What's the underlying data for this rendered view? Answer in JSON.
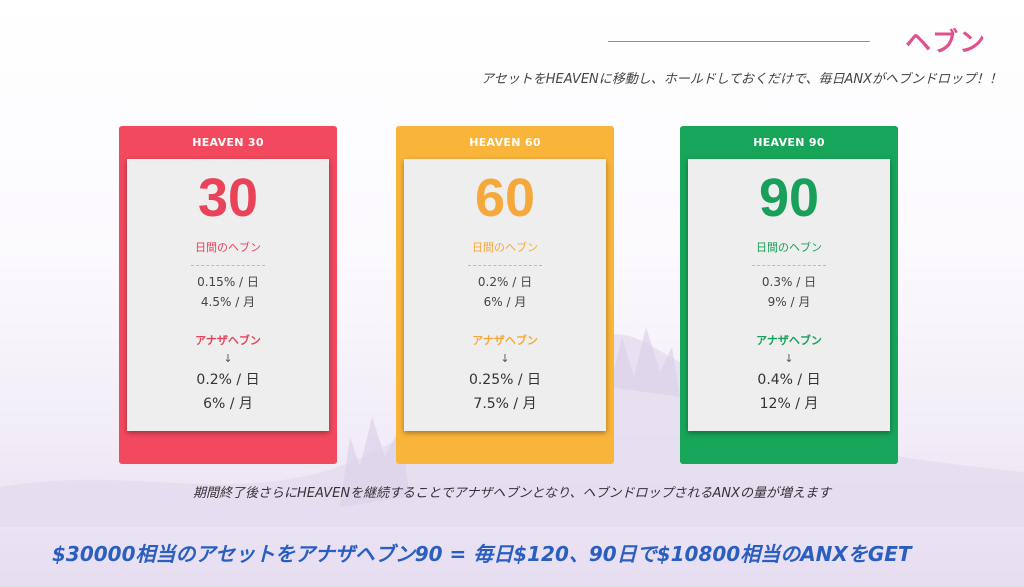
{
  "header": {
    "title": "ヘブン",
    "subtitle": "アセットをHEAVENに移動し、ホールドしておくだけで、毎日ANXがヘブンドロップ！！"
  },
  "cards": [
    {
      "title": "HEAVEN 30",
      "days": "30",
      "days_label": "日間のヘブン",
      "rate_daily": "0.15% / 日",
      "rate_monthly": "4.5% / 月",
      "another_label": "アナザヘブン",
      "arrow": "↓",
      "another_daily": "0.2% / 日",
      "another_monthly": "6% / 月"
    },
    {
      "title": "HEAVEN 60",
      "days": "60",
      "days_label": "日間のヘブン",
      "rate_daily": "0.2% / 日",
      "rate_monthly": "6% / 月",
      "another_label": "アナザヘブン",
      "arrow": "↓",
      "another_daily": "0.25% / 日",
      "another_monthly": "7.5% / 月"
    },
    {
      "title": "HEAVEN 90",
      "days": "90",
      "days_label": "日間のヘブン",
      "rate_daily": "0.3% / 日",
      "rate_monthly": "9% / 月",
      "another_label": "アナザヘブン",
      "arrow": "↓",
      "another_daily": "0.4% / 日",
      "another_monthly": "12% / 月"
    }
  ],
  "note": "期間終了後さらにHEAVENを継続することでアナザヘブンとなり、ヘブンドロップされるANXの量が増えます",
  "footer": "$30000相当のアセットをアナザヘブン90 = 毎日$120、90日で$10800相当のANXをGET",
  "colors": {
    "heaven30": "#f2495e",
    "heaven60": "#f9b43a",
    "heaven90": "#17a559",
    "title_pink": "#e0508e",
    "footer_blue": "#2a5fc0"
  }
}
